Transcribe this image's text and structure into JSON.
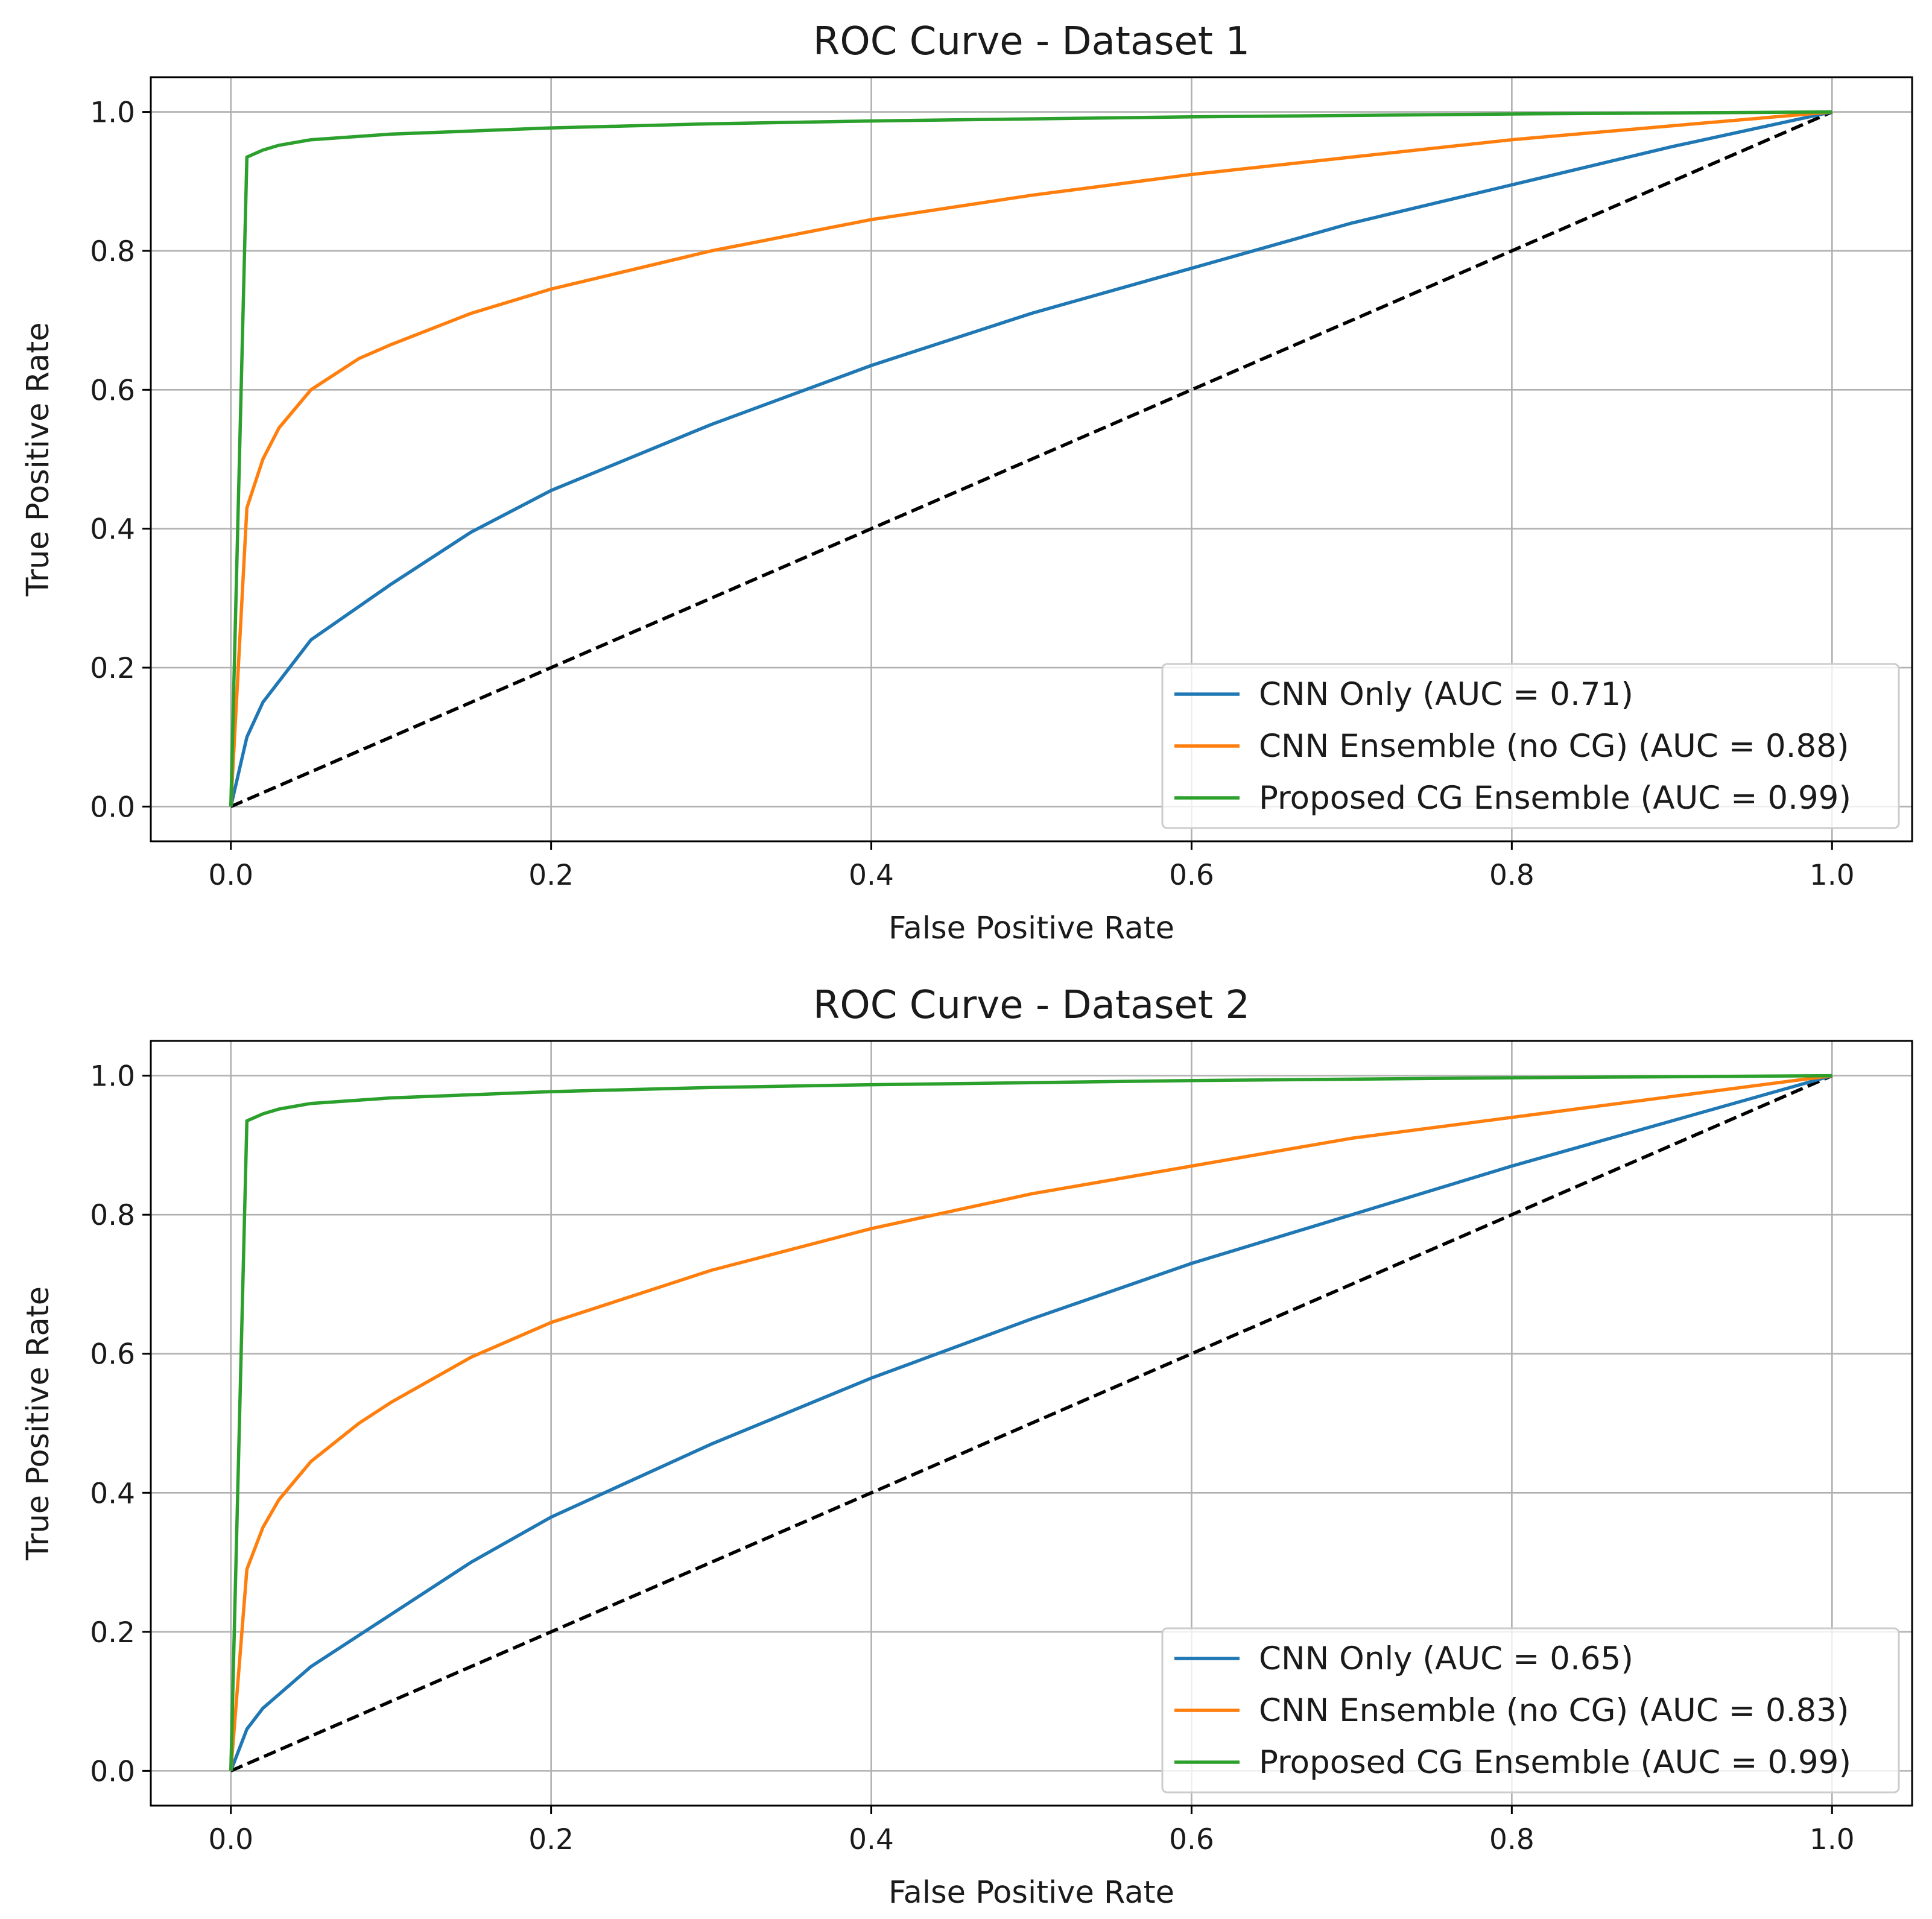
{
  "chart_data": [
    {
      "type": "line",
      "title": "ROC Curve - Dataset 1",
      "xlabel": "False Positive Rate",
      "ylabel": "True Positive Rate",
      "xlim": [
        -0.05,
        1.05
      ],
      "ylim": [
        -0.05,
        1.05
      ],
      "xticks": [
        "0.0",
        "0.2",
        "0.4",
        "0.6",
        "0.8",
        "1.0"
      ],
      "yticks": [
        "0.0",
        "0.2",
        "0.4",
        "0.6",
        "0.8",
        "1.0"
      ],
      "grid": true,
      "legend_position": "lower right",
      "diagonal": {
        "x": [
          0,
          1
        ],
        "y": [
          0,
          1
        ],
        "color": "#000000",
        "style": "dashed"
      },
      "series": [
        {
          "name": "CNN Only (AUC = 0.71)",
          "color": "#1f77b4",
          "x": [
            0,
            0.01,
            0.02,
            0.05,
            0.1,
            0.15,
            0.2,
            0.3,
            0.4,
            0.5,
            0.6,
            0.7,
            0.8,
            0.9,
            1.0
          ],
          "y": [
            0,
            0.1,
            0.15,
            0.24,
            0.32,
            0.395,
            0.455,
            0.55,
            0.635,
            0.71,
            0.775,
            0.84,
            0.895,
            0.95,
            1.0
          ]
        },
        {
          "name": "CNN Ensemble (no CG) (AUC = 0.88)",
          "color": "#ff7f0e",
          "x": [
            0,
            0.01,
            0.02,
            0.03,
            0.05,
            0.08,
            0.1,
            0.15,
            0.2,
            0.3,
            0.4,
            0.5,
            0.6,
            0.7,
            0.8,
            0.9,
            1.0
          ],
          "y": [
            0,
            0.43,
            0.5,
            0.545,
            0.6,
            0.645,
            0.665,
            0.71,
            0.745,
            0.8,
            0.845,
            0.88,
            0.91,
            0.935,
            0.96,
            0.98,
            1.0
          ]
        },
        {
          "name": "Proposed CG Ensemble (AUC = 0.99)",
          "color": "#2ca02c",
          "x": [
            0,
            0.01,
            0.02,
            0.03,
            0.05,
            0.1,
            0.2,
            0.3,
            0.4,
            0.5,
            0.6,
            0.8,
            1.0
          ],
          "y": [
            0,
            0.935,
            0.945,
            0.952,
            0.96,
            0.968,
            0.977,
            0.983,
            0.987,
            0.99,
            0.993,
            0.997,
            1.0
          ]
        }
      ]
    },
    {
      "type": "line",
      "title": "ROC Curve - Dataset 2",
      "xlabel": "False Positive Rate",
      "ylabel": "True Positive Rate",
      "xlim": [
        -0.05,
        1.05
      ],
      "ylim": [
        -0.05,
        1.05
      ],
      "xticks": [
        "0.0",
        "0.2",
        "0.4",
        "0.6",
        "0.8",
        "1.0"
      ],
      "yticks": [
        "0.0",
        "0.2",
        "0.4",
        "0.6",
        "0.8",
        "1.0"
      ],
      "grid": true,
      "legend_position": "lower right",
      "diagonal": {
        "x": [
          0,
          1
        ],
        "y": [
          0,
          1
        ],
        "color": "#000000",
        "style": "dashed"
      },
      "series": [
        {
          "name": "CNN Only (AUC = 0.65)",
          "color": "#1f77b4",
          "x": [
            0,
            0.01,
            0.02,
            0.05,
            0.1,
            0.15,
            0.2,
            0.3,
            0.4,
            0.5,
            0.6,
            0.7,
            0.8,
            0.9,
            1.0
          ],
          "y": [
            0,
            0.06,
            0.09,
            0.15,
            0.225,
            0.3,
            0.365,
            0.47,
            0.565,
            0.65,
            0.73,
            0.8,
            0.87,
            0.935,
            1.0
          ]
        },
        {
          "name": "CNN Ensemble (no CG) (AUC = 0.83)",
          "color": "#ff7f0e",
          "x": [
            0,
            0.01,
            0.02,
            0.03,
            0.05,
            0.08,
            0.1,
            0.15,
            0.2,
            0.3,
            0.4,
            0.5,
            0.6,
            0.7,
            0.8,
            0.9,
            1.0
          ],
          "y": [
            0,
            0.29,
            0.35,
            0.39,
            0.445,
            0.5,
            0.53,
            0.595,
            0.645,
            0.72,
            0.78,
            0.83,
            0.87,
            0.91,
            0.94,
            0.97,
            1.0
          ]
        },
        {
          "name": "Proposed CG Ensemble (AUC = 0.99)",
          "color": "#2ca02c",
          "x": [
            0,
            0.01,
            0.02,
            0.03,
            0.05,
            0.1,
            0.2,
            0.3,
            0.4,
            0.5,
            0.6,
            0.8,
            1.0
          ],
          "y": [
            0,
            0.935,
            0.945,
            0.952,
            0.96,
            0.968,
            0.977,
            0.983,
            0.987,
            0.99,
            0.993,
            0.997,
            1.0
          ]
        }
      ]
    }
  ]
}
